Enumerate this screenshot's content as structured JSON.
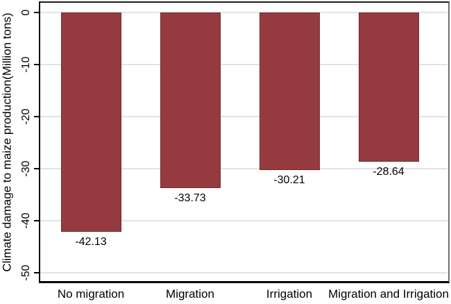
{
  "chart_data": {
    "type": "bar",
    "title": "",
    "xlabel": "",
    "ylabel": "Climate damage to maize production(Million tons)",
    "categories": [
      "No migration",
      "Migration",
      "Irrigation",
      "Migration and Irrigation"
    ],
    "values": [
      -42.13,
      -33.73,
      -30.21,
      -28.64
    ],
    "bar_value_labels": [
      "-42.13",
      "-33.73",
      "-30.21",
      "-28.64"
    ],
    "ylim": [
      -50,
      0
    ],
    "yticks": [
      0,
      -10,
      -20,
      -30,
      -40,
      -50
    ],
    "ytick_labels": [
      "0",
      "-10",
      "-20",
      "-30",
      "-40",
      "-50"
    ],
    "grid": true,
    "legend": "none",
    "colors": {
      "bar_fill": "#953B40",
      "bar_outline": "#6E2B2F",
      "gridline": "#E3E3E3",
      "axis_left_bottom": "#000000",
      "frame_top": "#1A1A1A",
      "frame_right": "#6F6F6F",
      "text": "#000000",
      "background": "#FFFFFF"
    }
  }
}
